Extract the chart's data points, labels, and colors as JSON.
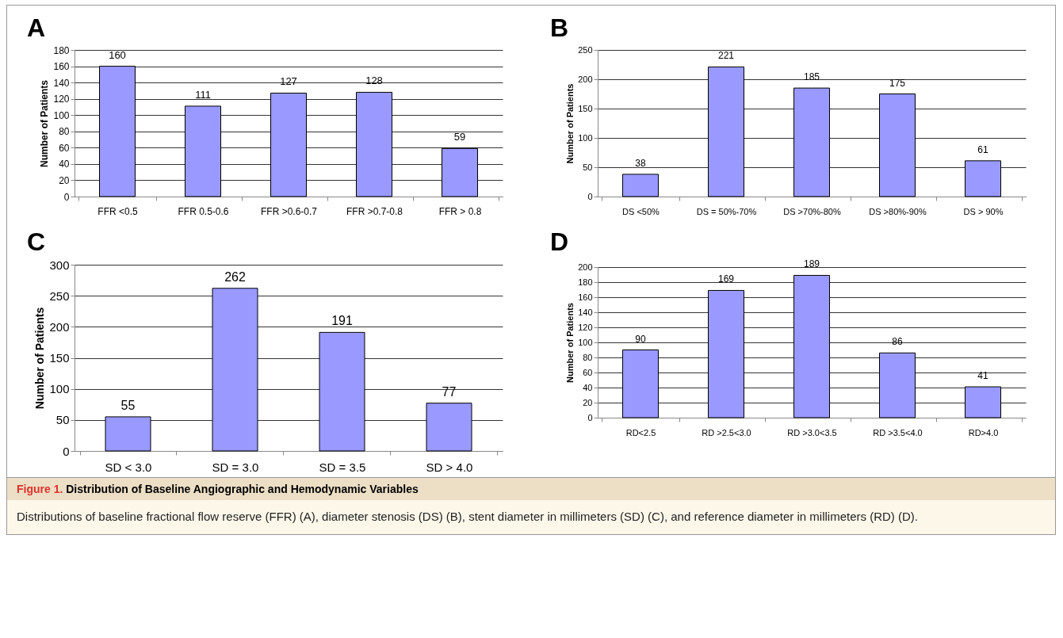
{
  "chart_data": [
    {
      "type": "bar",
      "title": "A",
      "ylabel": "Number of Patients",
      "categories": [
        "FFR <0.5",
        "FFR 0.5-0.6",
        "FFR >0.6-0.7",
        "FFR >0.7-0.8",
        "FFR > 0.8"
      ],
      "values": [
        160,
        111,
        127,
        128,
        59
      ],
      "color": "#9999ff",
      "ylim": [
        0,
        180
      ],
      "yticks": [
        0,
        20,
        40,
        60,
        80,
        100,
        120,
        140,
        160,
        180
      ],
      "grid": "y",
      "data_labels": true
    },
    {
      "type": "bar",
      "title": "B",
      "ylabel": "Number of Patients",
      "categories": [
        "DS <50%",
        "DS = 50%-70%",
        "DS >70%-80%",
        "DS >80%-90%",
        "DS > 90%"
      ],
      "values": [
        38,
        221,
        185,
        175,
        61
      ],
      "color": "#9999ff",
      "ylim": [
        0,
        250
      ],
      "yticks": [
        0,
        50,
        100,
        150,
        200,
        250
      ],
      "grid": "y",
      "data_labels": true
    },
    {
      "type": "bar",
      "title": "C",
      "ylabel": "Number of Patients",
      "categories": [
        "SD < 3.0",
        "SD = 3.0",
        "SD = 3.5",
        "SD > 4.0"
      ],
      "values": [
        55,
        262,
        191,
        77
      ],
      "color": "#9999ff",
      "ylim": [
        0,
        300
      ],
      "yticks": [
        0,
        50,
        100,
        150,
        200,
        250,
        300
      ],
      "grid": "y",
      "data_labels": true
    },
    {
      "type": "bar",
      "title": "D",
      "ylabel": "Number of Patients",
      "categories": [
        "RD<2.5",
        "RD >2.5<3.0",
        "RD >3.0<3.5",
        "RD >3.5<4.0",
        "RD>4.0"
      ],
      "values": [
        90,
        169,
        189,
        86,
        41
      ],
      "color": "#9999ff",
      "ylim": [
        0,
        200
      ],
      "yticks": [
        0,
        20,
        40,
        60,
        80,
        100,
        120,
        140,
        160,
        180,
        200
      ],
      "grid": "y",
      "data_labels": true,
      "annotations": [
        "Figure 1.",
        "Distribution of Baseline Angiographic and Hemodynamic Variables",
        "Distributions of baseline fractional flow reserve (FFR) (A), diameter stenosis (DS) (B), stent diameter in millimeters (SD) (C), and reference diameter in millimeters (RD) (D)."
      ]
    }
  ]
}
